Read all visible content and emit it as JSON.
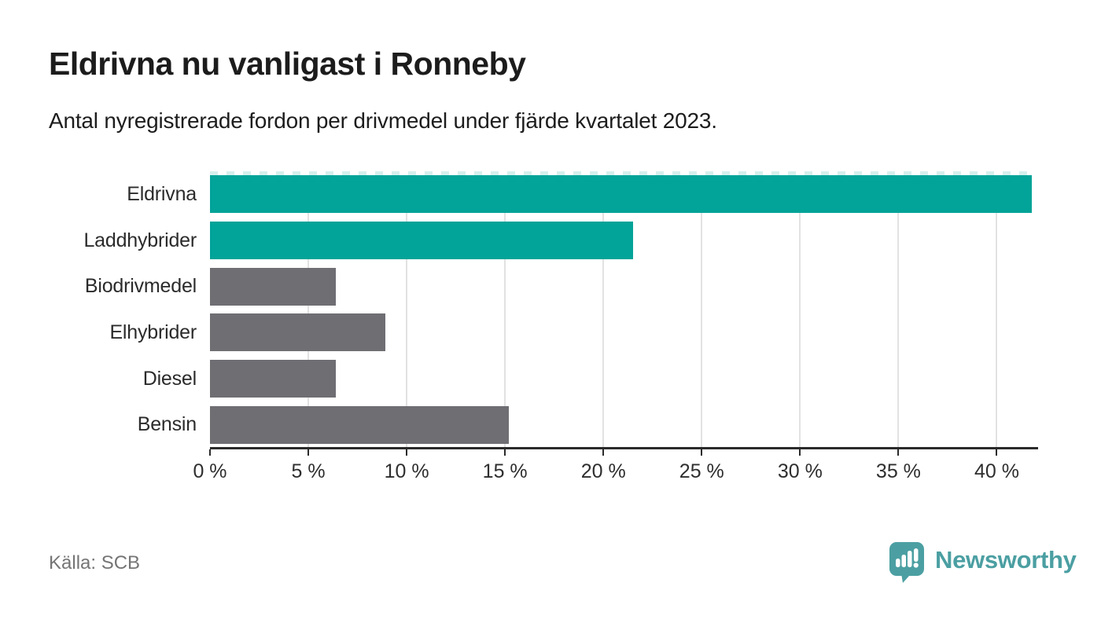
{
  "header": {
    "title": "Eldrivna nu vanligast i Ronneby",
    "subtitle": "Antal nyregistrerade fordon per drivmedel under fjärde kvartalet 2023."
  },
  "chart_data": {
    "type": "bar",
    "orientation": "horizontal",
    "title": "Eldrivna nu vanligast i Ronneby",
    "subtitle": "Antal nyregistrerade fordon per drivmedel under fjärde kvartalet 2023.",
    "categories": [
      "Eldrivna",
      "Laddhybrider",
      "Biodrivmedel",
      "Elhybrider",
      "Diesel",
      "Bensin"
    ],
    "values": [
      41.8,
      21.5,
      6.4,
      8.9,
      6.4,
      15.2
    ],
    "unit": "%",
    "xlim": [
      0,
      41.9
    ],
    "x_ticks": [
      0,
      5,
      10,
      15,
      20,
      25,
      30,
      35,
      40
    ],
    "x_tick_labels": [
      "0 %",
      "5 %",
      "10 %",
      "15 %",
      "20 %",
      "25 %",
      "30 %",
      "35 %",
      "40 %"
    ],
    "grid": true,
    "legend": "none",
    "bar_colors": [
      "#02a398",
      "#02a398",
      "#6e6e73",
      "#6e6e73",
      "#6e6e73",
      "#6e6e73"
    ],
    "first_bar_clipped_at_right": true
  },
  "colors": {
    "highlight_teal": "#02a398",
    "neutral_gray": "#6e6e73",
    "grid": "#e2e2e2",
    "axis": "#2b2b2b",
    "brand_teal": "#4b9fa2"
  },
  "footer": {
    "source": "Källa: SCB",
    "brand": "Newsworthy"
  }
}
